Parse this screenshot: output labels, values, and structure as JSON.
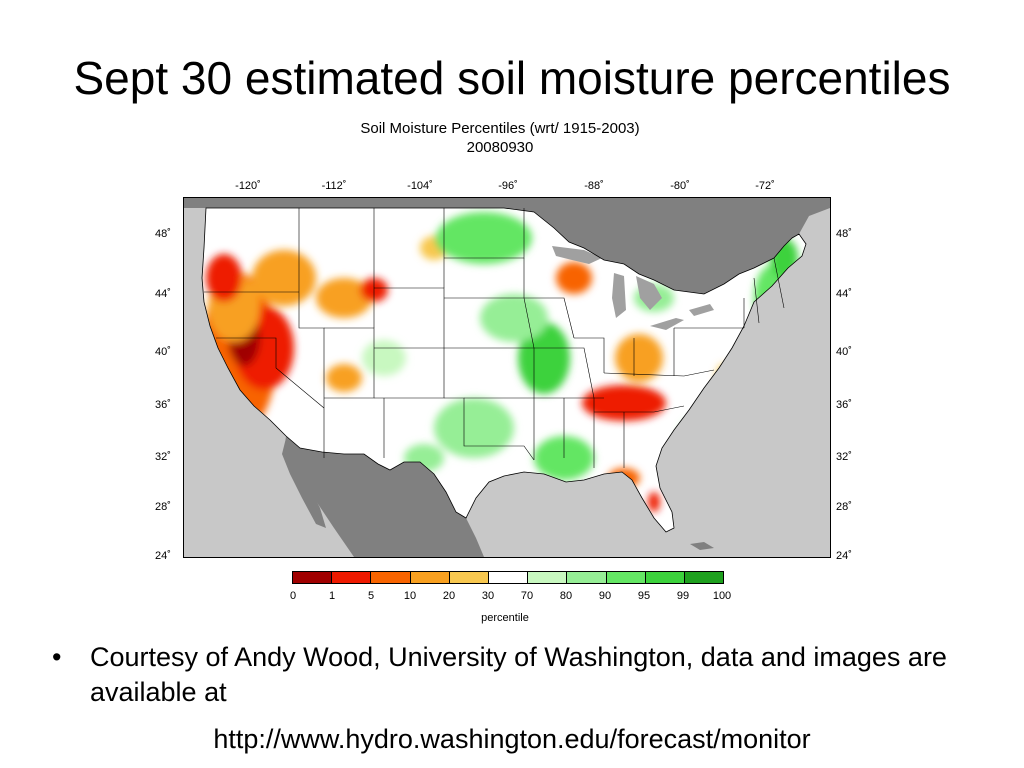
{
  "slide": {
    "title": "Sept 30 estimated soil moisture percentiles",
    "bullet": "Courtesy of Andy Wood, University of Washington, data and images are available at",
    "bullet_marker": "•",
    "url": "http://www.hydro.washington.edu/forecast/monitor"
  },
  "map": {
    "title": "Soil Moisture Percentiles (wrt/ 1915-2003)",
    "subtitle": "20080930",
    "lon_ticks": [
      "-120˚",
      "-112˚",
      "-104˚",
      "-96˚",
      "-88˚",
      "-80˚",
      "-72˚"
    ],
    "lat_ticks": [
      "48˚",
      "44˚",
      "40˚",
      "36˚",
      "32˚",
      "28˚",
      "24˚"
    ],
    "colors": {
      "ocean": "#c8c8c8",
      "land_outside": "#808080",
      "great_lakes": "#a0a0a0",
      "border": "#000000"
    }
  },
  "legend": {
    "label": "percentile",
    "ticks": [
      "0",
      "1",
      "5",
      "10",
      "20",
      "30",
      "70",
      "80",
      "90",
      "95",
      "99",
      "100"
    ],
    "colors": [
      "#a00000",
      "#ee1a00",
      "#f86400",
      "#f8a020",
      "#f8c850",
      "#ffffff",
      "#c8f8c0",
      "#96ee96",
      "#64e664",
      "#3cd23c",
      "#1ea01e"
    ]
  }
}
